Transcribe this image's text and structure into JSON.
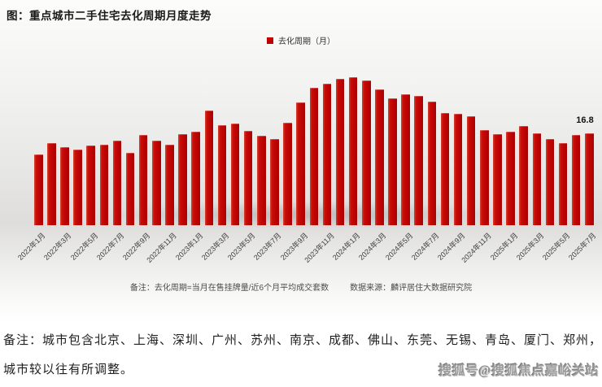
{
  "page": {
    "footnote_line1": "备注：城市包含北京、上海、深圳、广州、苏州、南京、成都、佛山、东莞、无锡、青岛、厦门、郑州，",
    "footnote_line2": "城市较以往有所调整。",
    "watermark": "搜狐号@搜狐焦点嘉峪关站"
  },
  "chart_notes": {
    "note": "备注：去化周期=当月在售挂牌量/近6个月平均成交套数",
    "source": "数据来源：麟评居住大数据研究院"
  },
  "chart_data": {
    "type": "bar",
    "title": "图：重点城市二手住宅去化周期月度走势",
    "legend": [
      "去化周期（月）"
    ],
    "legend_position": "top-center",
    "bar_color": "#c00404",
    "grid": false,
    "ylim": [
      0,
      29
    ],
    "ylabel": "去化周期（月）",
    "xlabel": "",
    "last_value_label": "16.8",
    "x_tick_labels": [
      "2022年1月",
      "2022年3月",
      "2022年5月",
      "2022年7月",
      "2022年9月",
      "2022年11月",
      "2023年1月",
      "2023年3月",
      "2023年5月",
      "2023年7月",
      "2023年9月",
      "2023年11月",
      "2024年1月",
      "2024年3月",
      "2024年5月",
      "2024年7月",
      "2024年9月",
      "2024年11月",
      "2025年1月",
      "2025年3月",
      "2025年5月",
      "2025年7月"
    ],
    "categories": [
      "2022年1月",
      "2022年2月",
      "2022年3月",
      "2022年4月",
      "2022年5月",
      "2022年6月",
      "2022年7月",
      "2022年8月",
      "2022年9月",
      "2022年10月",
      "2022年11月",
      "2022年12月",
      "2023年1月",
      "2023年2月",
      "2023年3月",
      "2023年4月",
      "2023年5月",
      "2023年6月",
      "2023年7月",
      "2023年8月",
      "2023年9月",
      "2023年10月",
      "2023年11月",
      "2023年12月",
      "2024年1月",
      "2024年2月",
      "2024年3月",
      "2024年4月",
      "2024年5月",
      "2024年6月",
      "2024年7月",
      "2024年8月",
      "2024年9月",
      "2024年10月",
      "2024年11月",
      "2024年12月",
      "2025年1月",
      "2025年2月",
      "2025年3月",
      "2025年4月",
      "2025年5月",
      "2025年6月",
      "2025年7月"
    ],
    "values": [
      12.9,
      15.0,
      14.3,
      13.9,
      14.5,
      14.7,
      15.4,
      13.2,
      16.5,
      15.5,
      14.7,
      16.7,
      17.1,
      21.0,
      18.3,
      18.6,
      17.2,
      16.3,
      15.8,
      18.8,
      22.4,
      25.1,
      25.8,
      26.7,
      27.1,
      26.5,
      24.8,
      23.2,
      23.9,
      23.7,
      22.6,
      20.5,
      20.4,
      19.9,
      17.4,
      16.6,
      17.1,
      18.1,
      16.8,
      15.7,
      15.0,
      16.5,
      16.8
    ]
  }
}
